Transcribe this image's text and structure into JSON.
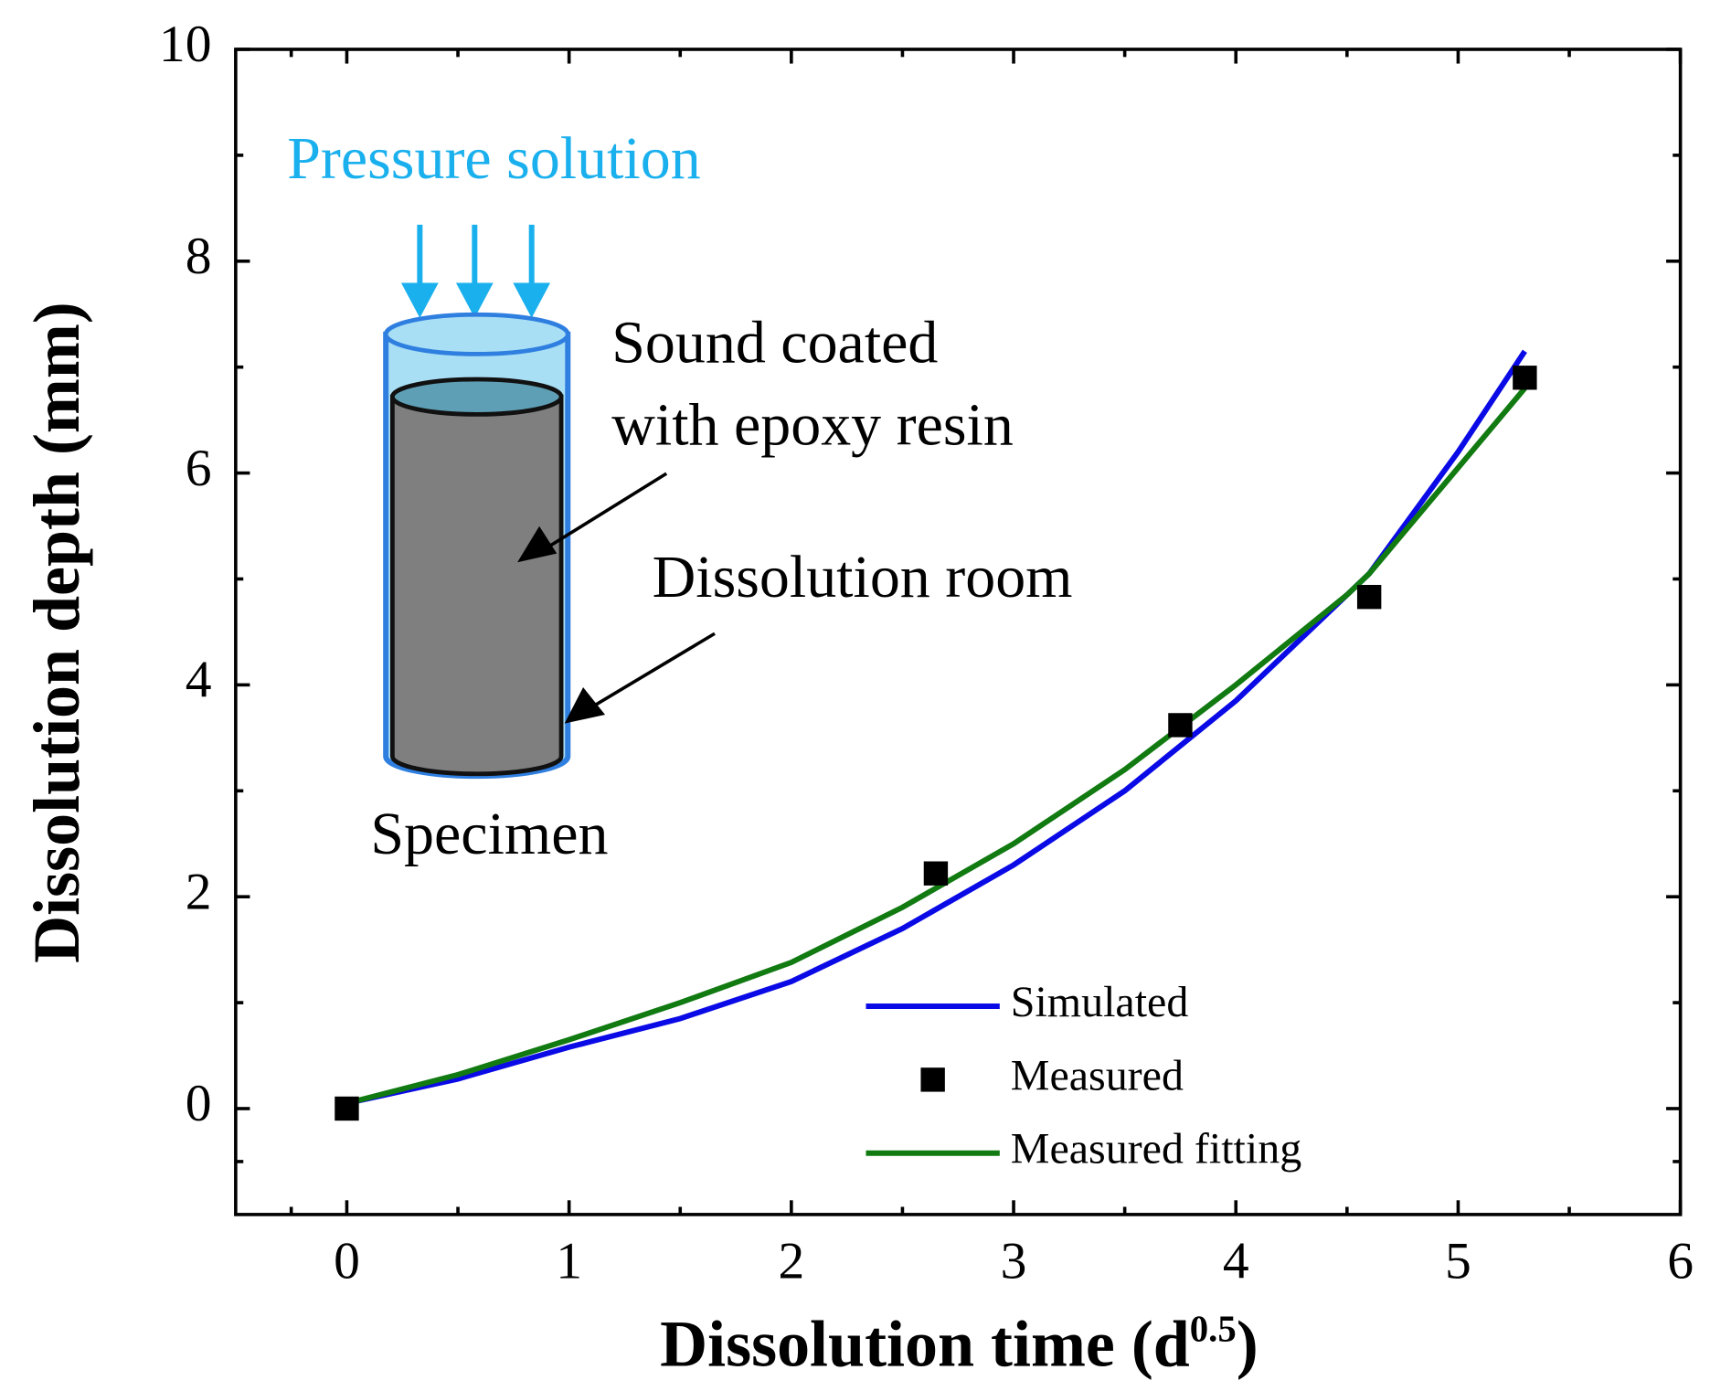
{
  "chart_data": {
    "type": "line",
    "xlabel": [
      "Dissolution time (d",
      "0.5",
      ")"
    ],
    "ylabel": "Dissolution depth (mm)",
    "xlim": [
      -0.5,
      6
    ],
    "xticks": [
      0,
      1,
      2,
      3,
      4,
      5,
      6
    ],
    "ylim": [
      -1,
      10
    ],
    "yticks": [
      0,
      2,
      4,
      6,
      8,
      10
    ],
    "legend": "lower right",
    "series": [
      {
        "name": "Simulated",
        "kind": "line",
        "color": "#0a0ae6",
        "x": [
          0,
          0.5,
          1,
          1.5,
          2,
          2.5,
          3,
          3.5,
          4,
          4.5,
          4.6,
          5,
          5.3
        ],
        "values": [
          0.05,
          0.28,
          0.58,
          0.85,
          1.2,
          1.7,
          2.3,
          3.0,
          3.85,
          4.85,
          5.05,
          6.2,
          7.15
        ]
      },
      {
        "name": "Measured",
        "kind": "scatter",
        "color": "#000000",
        "x": [
          0,
          2.65,
          3.75,
          4.6,
          5.3
        ],
        "values": [
          0,
          2.22,
          3.62,
          4.83,
          6.9
        ]
      },
      {
        "name": "Measured fitting",
        "kind": "line",
        "color": "#117a11",
        "x": [
          0,
          0.5,
          1,
          1.5,
          2,
          2.5,
          3,
          3.5,
          4,
          4.5,
          4.6,
          5,
          5.3
        ],
        "values": [
          0.05,
          0.32,
          0.65,
          1.0,
          1.38,
          1.9,
          2.5,
          3.2,
          4.0,
          4.85,
          5.05,
          6.05,
          6.8
        ]
      }
    ],
    "annotations": {
      "pressure": "Pressure solution",
      "coated": [
        "Sound coated",
        "with epoxy resin"
      ],
      "room": "Dissolution room",
      "specimen": "Specimen"
    }
  }
}
